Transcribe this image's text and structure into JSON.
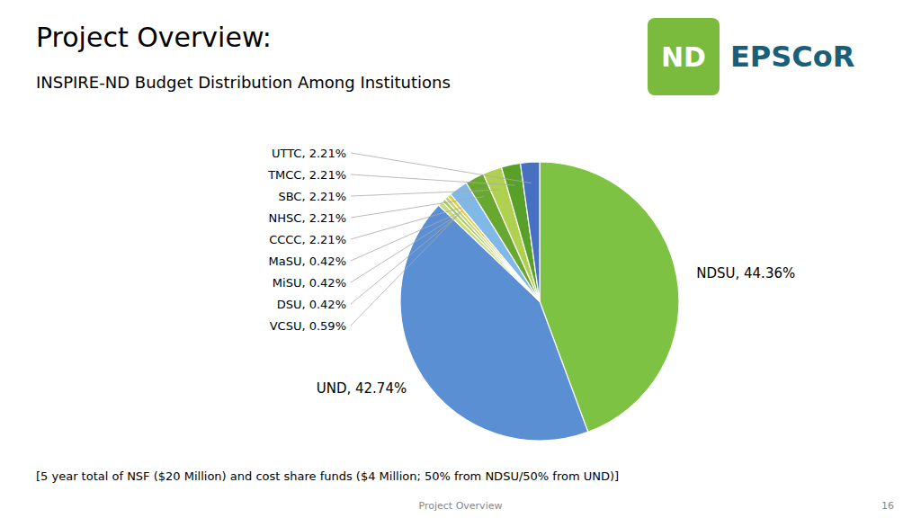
{
  "chart_data": {
    "type": "pie",
    "title": "Project Overview:",
    "subtitle": "INSPIRE-ND Budget Distribution Among Institutions",
    "values": [
      44.36,
      42.74,
      0.59,
      0.42,
      0.42,
      0.42,
      2.21,
      2.21,
      2.21,
      2.21,
      2.21
    ],
    "value_labels": [
      "NDSU, 44.36%",
      "UND, 42.74%",
      "VCSU, 0.59%",
      "DSU, 0.42%",
      "MiSU, 0.42%",
      "MaSU, 0.42%",
      "CCCC, 2.21%",
      "NHSC, 2.21%",
      "SBC, 2.21%",
      "TMCC, 2.21%",
      "UTTC, 2.21%"
    ],
    "colors": [
      "#7dc242",
      "#5b8fd4",
      "#c8de7a",
      "#a8c85a",
      "#c0d068",
      "#e8cc38",
      "#80b8e8",
      "#68a830",
      "#b0d050",
      "#58a028",
      "#4870c0"
    ],
    "data_labels": true,
    "annotations": [
      "ND",
      "EPSCoR",
      "[5 year total of NSF ($20 Million) and cost share funds ($4 Million; 50% from NDSU/50% from UND)]",
      "Project Overview",
      "16"
    ]
  }
}
